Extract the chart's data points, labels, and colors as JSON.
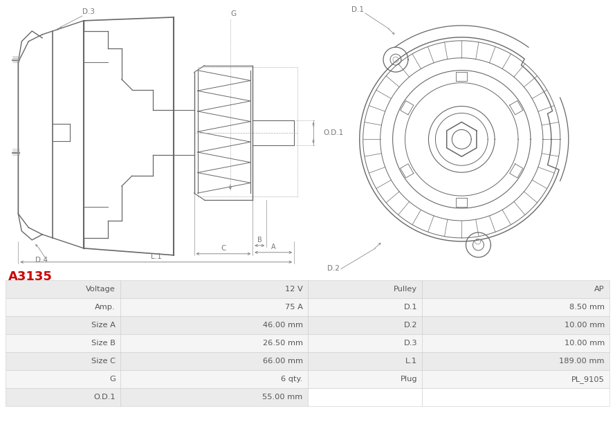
{
  "title": "A3135",
  "title_color": "#cc0000",
  "bg_color": "#ffffff",
  "table_rows": [
    [
      "Voltage",
      "12 V",
      "Pulley",
      "AP"
    ],
    [
      "Amp.",
      "75 A",
      "D.1",
      "8.50 mm"
    ],
    [
      "Size A",
      "46.00 mm",
      "D.2",
      "10.00 mm"
    ],
    [
      "Size B",
      "26.50 mm",
      "D.3",
      "10.00 mm"
    ],
    [
      "Size C",
      "66.00 mm",
      "L.1",
      "189.00 mm"
    ],
    [
      "G",
      "6 qty.",
      "Plug",
      "PL_9105"
    ],
    [
      "O.D.1",
      "55.00 mm",
      "",
      ""
    ]
  ],
  "row_bg_even": "#ebebeb",
  "row_bg_odd": "#f5f5f5",
  "table_text_color": "#555555",
  "divider_color": "#cccccc",
  "line_color": "#666666",
  "dim_color": "#777777"
}
